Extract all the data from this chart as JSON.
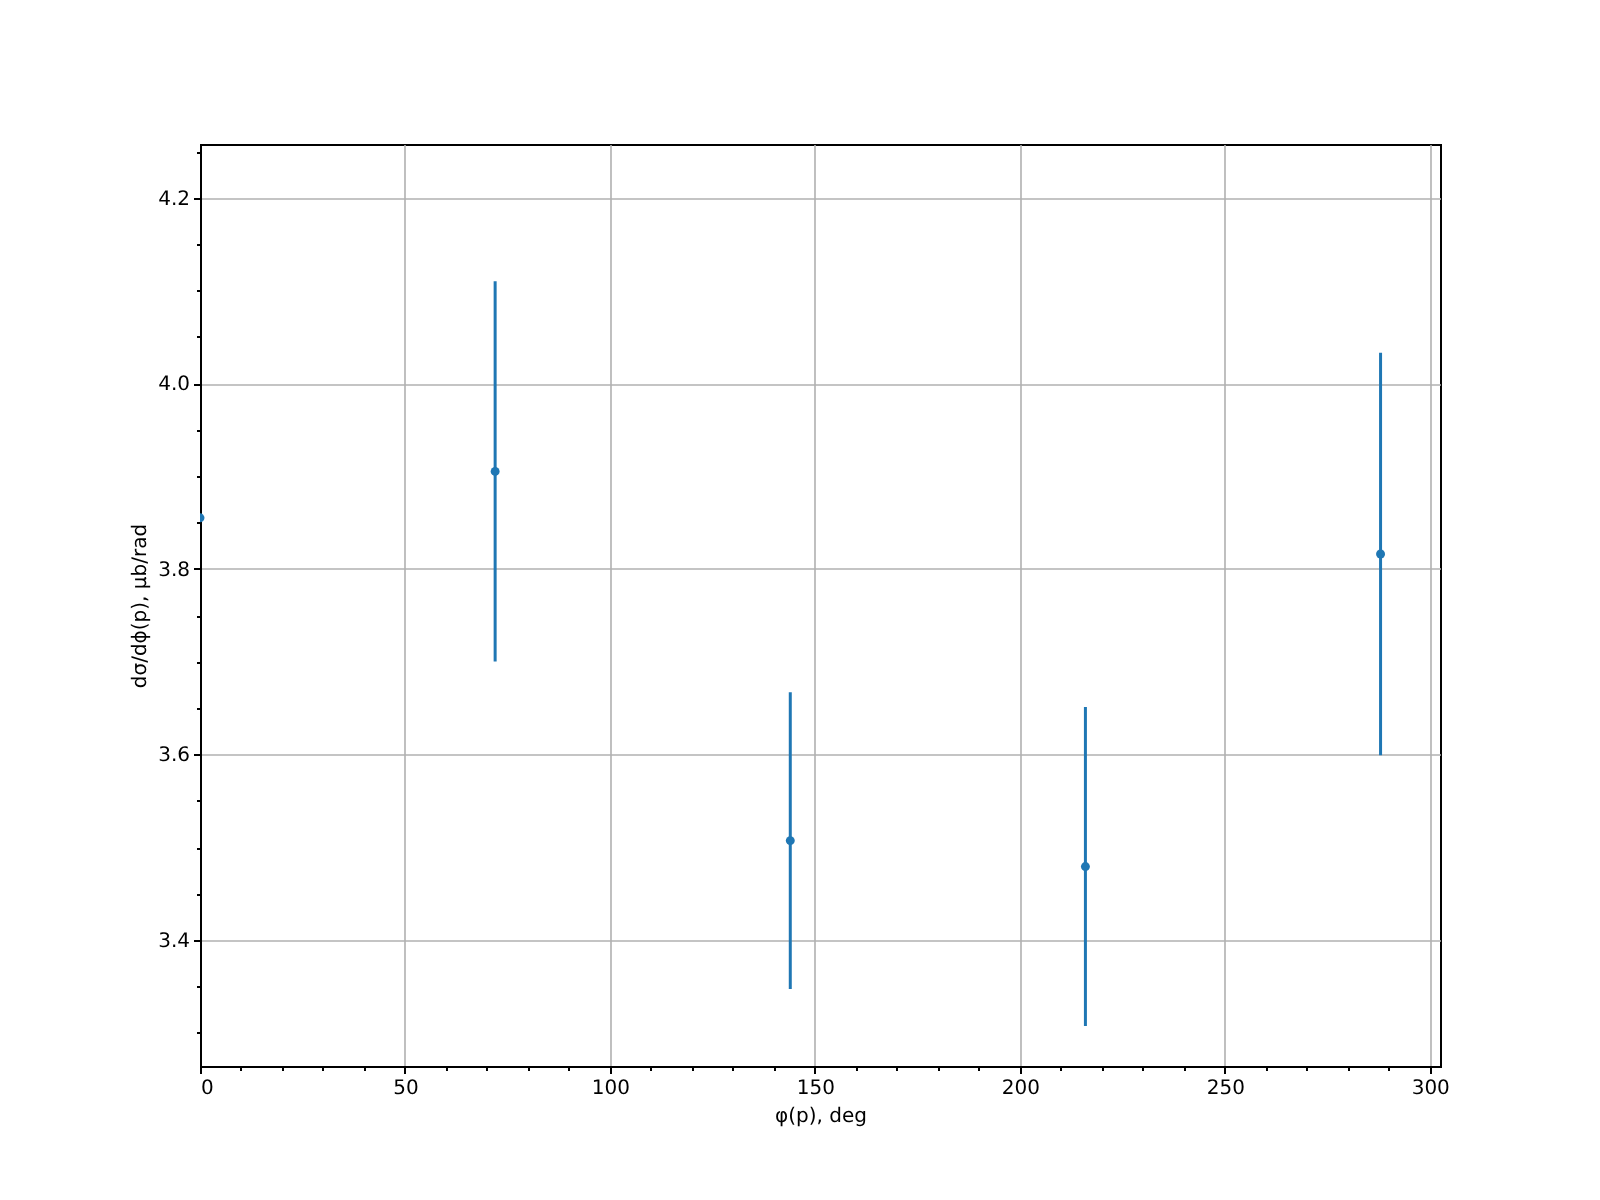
{
  "chart_data": {
    "type": "scatter",
    "xlabel": "φ(p), deg",
    "ylabel": "dσ/dϕ(p), μb/rad",
    "x": [
      0,
      72,
      144,
      216,
      288
    ],
    "series": [
      {
        "color": "#1f77b4",
        "values": [
          3.855,
          3.905,
          3.507,
          3.479,
          3.816
        ],
        "errors": [
          null,
          0.205,
          0.16,
          0.172,
          0.217
        ]
      }
    ],
    "marker": "circle",
    "grid": true,
    "xlim": [
      0,
      302.5
    ],
    "ylim": [
      3.264,
      4.258
    ],
    "xticks": [
      0,
      {
        "value": 10,
        "label": null
      },
      {
        "value": 20,
        "label": null
      },
      {
        "value": 30,
        "label": null
      },
      {
        "value": 40,
        "label": null
      },
      50,
      {
        "value": 60,
        "label": null
      },
      {
        "value": 70,
        "label": null
      },
      {
        "value": 80,
        "label": null
      },
      {
        "value": 90,
        "label": null
      },
      100,
      {
        "value": 110,
        "label": null
      },
      {
        "value": 120,
        "label": null
      },
      {
        "value": 130,
        "label": null
      },
      {
        "value": 140,
        "label": null
      },
      150,
      {
        "value": 160,
        "label": null
      },
      {
        "value": 170,
        "label": null
      },
      {
        "value": 180,
        "label": null
      },
      {
        "value": 190,
        "label": null
      },
      200,
      {
        "value": 210,
        "label": null
      },
      {
        "value": 220,
        "label": null
      },
      {
        "value": 230,
        "label": null
      },
      {
        "value": 240,
        "label": null
      },
      250,
      {
        "value": 260,
        "label": null
      },
      {
        "value": 270,
        "label": null
      },
      {
        "value": 280,
        "label": null
      },
      {
        "value": 290,
        "label": null
      },
      300
    ],
    "yticks": [
      {
        "value": 3.3,
        "label": null
      },
      {
        "value": 3.35,
        "label": null
      },
      {
        "value": 3.4,
        "label": "3.4"
      },
      {
        "value": 3.45,
        "label": null
      },
      {
        "value": 3.5,
        "label": null
      },
      {
        "value": 3.55,
        "label": null
      },
      {
        "value": 3.6,
        "label": "3.6"
      },
      {
        "value": 3.65,
        "label": null
      },
      {
        "value": 3.7,
        "label": null
      },
      {
        "value": 3.75,
        "label": null
      },
      {
        "value": 3.8,
        "label": "3.8"
      },
      {
        "value": 3.85,
        "label": null
      },
      {
        "value": 3.9,
        "label": null
      },
      {
        "value": 3.95,
        "label": null
      },
      {
        "value": 4,
        "label": "4.0"
      },
      {
        "value": 4.05,
        "label": null
      },
      {
        "value": 4.1,
        "label": null
      },
      {
        "value": 4.15,
        "label": null
      },
      {
        "value": 4.2,
        "label": "4.2"
      },
      {
        "value": 4.25,
        "label": null
      }
    ]
  }
}
